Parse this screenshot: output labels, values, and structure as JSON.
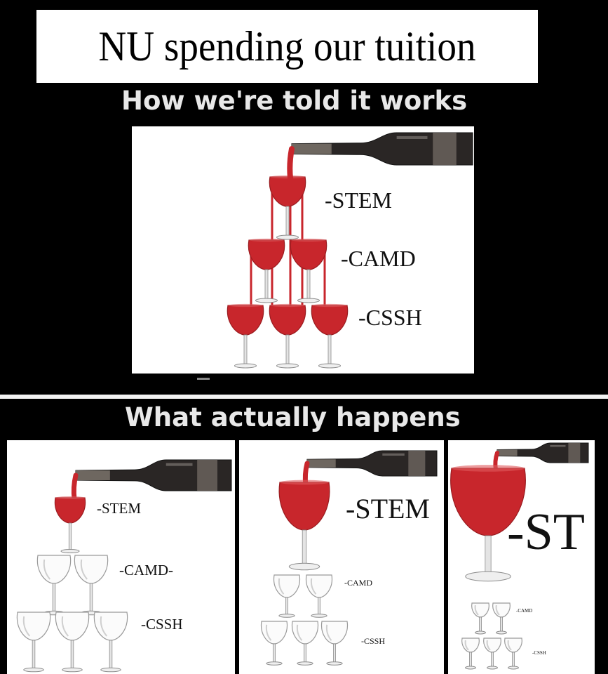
{
  "title": "NU spending our tuition",
  "top_heading": "How we're told it works",
  "bottom_heading": "What actually happens",
  "colors": {
    "wine": "#c8262c",
    "glass": "#e6e6e6",
    "bottle": "#2a2625",
    "label": "#6e6760"
  },
  "told": {
    "labels": [
      "-STEM",
      "-CAMD",
      "-CSSH"
    ]
  },
  "actual": {
    "panel1": {
      "labels": [
        "-STEM",
        "-CAMD-",
        "-CSSH"
      ]
    },
    "panel2": {
      "labels": [
        "-STEM",
        "-CAMD",
        "-CSSH"
      ]
    },
    "panel3": {
      "labels": [
        "-ST",
        "-CAMD",
        "-CSSH"
      ]
    }
  }
}
